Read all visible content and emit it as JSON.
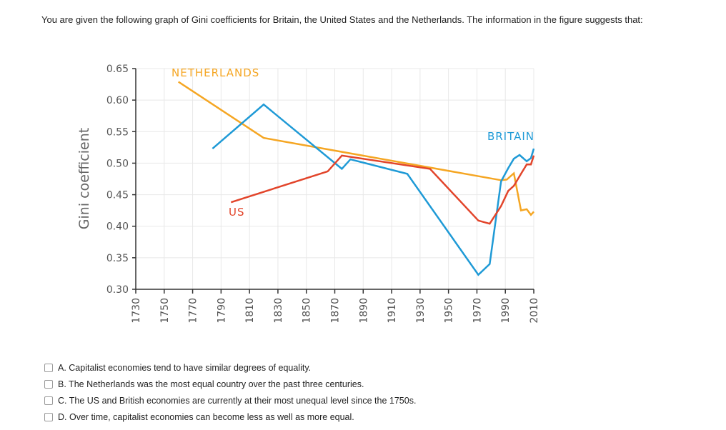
{
  "question": "You are given the following graph of Gini coefficients for Britain, the United States and the Netherlands. The information in the figure suggests that:",
  "options": [
    {
      "label": "A. Capitalist economies tend to have similar degrees of equality."
    },
    {
      "label": "B. The Netherlands was the most equal country over the past three centuries."
    },
    {
      "label": "C. The US and British economies are currently at their most unequal level since the 1750s."
    },
    {
      "label": "D. Over time, capitalist economies can become less as well as more equal."
    }
  ],
  "chart_data": {
    "type": "line",
    "title": "",
    "xlabel": "",
    "ylabel": "Gini coefficient",
    "xlim": [
      1730,
      2010
    ],
    "ylim": [
      0.3,
      0.65
    ],
    "xticks": [
      1730,
      1750,
      1770,
      1790,
      1810,
      1830,
      1850,
      1870,
      1890,
      1910,
      1930,
      1950,
      1970,
      1990,
      2010
    ],
    "yticks": [
      "0.30",
      "0.35",
      "0.40",
      "0.45",
      "0.50",
      "0.55",
      "0.60",
      "0.65"
    ],
    "grid": true,
    "series": [
      {
        "name": "NETHERLANDS",
        "color": "#f5a623",
        "points": [
          [
            1760,
            0.629
          ],
          [
            1820,
            0.54
          ],
          [
            1987,
            0.473
          ],
          [
            1991,
            0.474
          ],
          [
            1996,
            0.484
          ],
          [
            2001,
            0.425
          ],
          [
            2005,
            0.427
          ],
          [
            2008,
            0.418
          ],
          [
            2010,
            0.423
          ]
        ]
      },
      {
        "name": "BRITAIN",
        "color": "#1f9ad6",
        "points": [
          [
            1784,
            0.523
          ],
          [
            1820,
            0.593
          ],
          [
            1875,
            0.491
          ],
          [
            1881,
            0.506
          ],
          [
            1921,
            0.483
          ],
          [
            1971,
            0.323
          ],
          [
            1979,
            0.34
          ],
          [
            1987,
            0.471
          ],
          [
            1992,
            0.492
          ],
          [
            1996,
            0.507
          ],
          [
            2000,
            0.513
          ],
          [
            2005,
            0.503
          ],
          [
            2008,
            0.508
          ],
          [
            2010,
            0.523
          ]
        ]
      },
      {
        "name": "US",
        "color": "#e2452b",
        "points": [
          [
            1797,
            0.438
          ],
          [
            1865,
            0.487
          ],
          [
            1875,
            0.512
          ],
          [
            1937,
            0.491
          ],
          [
            1971,
            0.409
          ],
          [
            1979,
            0.404
          ],
          [
            1987,
            0.432
          ],
          [
            1992,
            0.456
          ],
          [
            1996,
            0.464
          ],
          [
            2001,
            0.483
          ],
          [
            2005,
            0.498
          ],
          [
            2008,
            0.498
          ],
          [
            2010,
            0.512
          ]
        ]
      }
    ]
  }
}
